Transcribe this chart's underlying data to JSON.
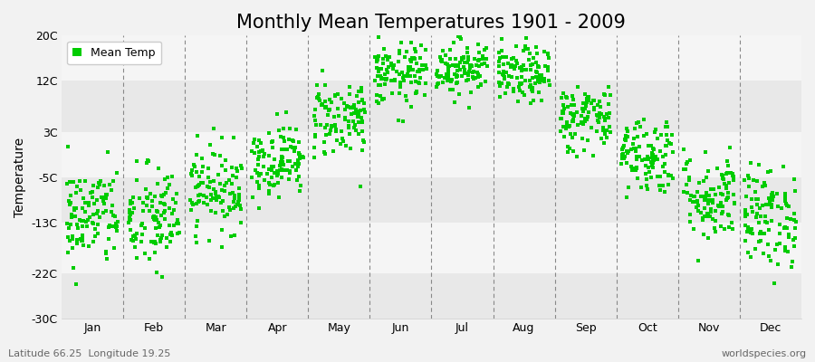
{
  "title": "Monthly Mean Temperatures 1901 - 2009",
  "ylabel": "Temperature",
  "xlabel_bottom_left": "Latitude 66.25  Longitude 19.25",
  "xlabel_bottom_right": "worldspecies.org",
  "legend_label": "Mean Temp",
  "dot_color": "#00cc00",
  "background_color": "#f2f2f2",
  "plot_bg_color": "#ffffff",
  "band_color_light": "#f5f5f5",
  "band_color_dark": "#e8e8e8",
  "ylim": [
    -30,
    20
  ],
  "yticks": [
    -30,
    -22,
    -13,
    -5,
    3,
    12,
    20
  ],
  "ytick_labels": [
    "-30C",
    "-22C",
    "-13C",
    "-5C",
    "3C",
    "12C",
    "20C"
  ],
  "months": [
    "Jan",
    "Feb",
    "Mar",
    "Apr",
    "May",
    "Jun",
    "Jul",
    "Aug",
    "Sep",
    "Oct",
    "Nov",
    "Dec"
  ],
  "month_means": [
    -12.0,
    -12.5,
    -7.0,
    -2.0,
    5.5,
    13.0,
    14.5,
    13.0,
    5.5,
    -1.0,
    -8.5,
    -12.0
  ],
  "month_stds": [
    4.5,
    4.8,
    3.8,
    3.2,
    3.5,
    2.8,
    2.5,
    2.5,
    3.0,
    3.5,
    4.0,
    4.5
  ],
  "n_years": 109,
  "marker_size": 8,
  "title_fontsize": 15,
  "axis_fontsize": 10,
  "tick_fontsize": 9,
  "legend_fontsize": 9,
  "grid_color": "#888888",
  "figsize": [
    9.0,
    4.0
  ],
  "dpi": 100
}
